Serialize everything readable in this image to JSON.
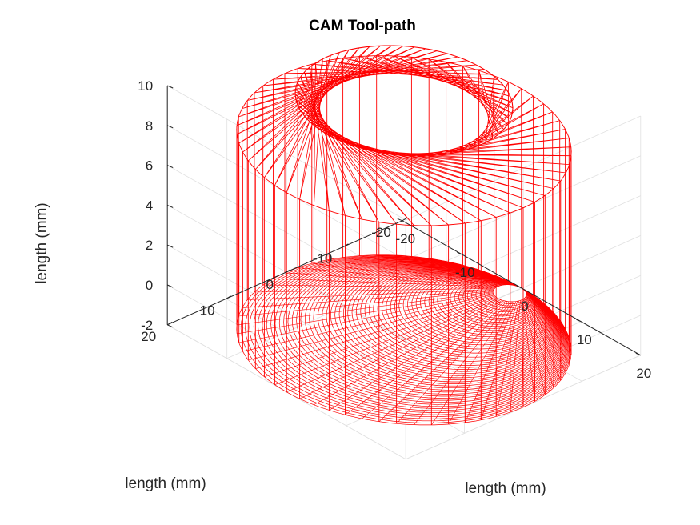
{
  "chart_data": {
    "type": "line3d",
    "title": "CAM Tool-path",
    "xlabel": "length (mm)",
    "ylabel": "length (mm)",
    "zlabel": "length (mm)",
    "xlim": [
      -20,
      20
    ],
    "ylim": [
      -20,
      20
    ],
    "zlim": [
      -2,
      10
    ],
    "xticks": [
      "-20",
      "-10",
      "0",
      "10",
      "20"
    ],
    "yticks": [
      "-20",
      "-10",
      "0",
      "10",
      "20"
    ],
    "zticks": [
      "-2",
      "0",
      "2",
      "4",
      "6",
      "8",
      "10"
    ],
    "grid": true,
    "box": "back-planes",
    "series": [
      {
        "line_color": "#ff0000",
        "path_rings": {
          "bottom_fan": {
            "z": -2,
            "outer_radius": 20,
            "inner_radius": 2,
            "steps": 60,
            "center_start": [
              0,
              0
            ],
            "center_end": [
              0,
              -18
            ]
          },
          "vertical_plunges": {
            "z_from": -2,
            "z_to": 8,
            "radius": 20,
            "count": 60
          },
          "top_fan": {
            "z_from": 8,
            "z_to": 10,
            "outer_radius": 20,
            "inner_radius": 13,
            "steps": 60
          }
        }
      }
    ]
  }
}
